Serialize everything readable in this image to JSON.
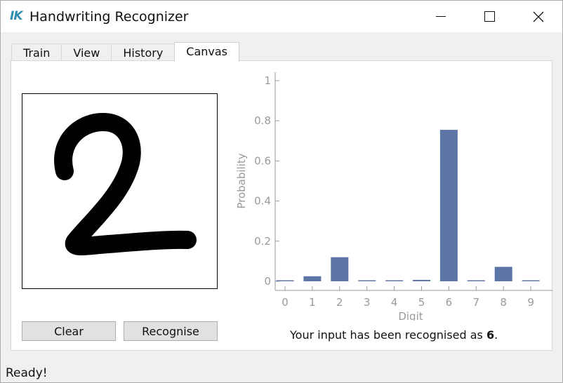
{
  "window": {
    "title": "Handwriting Recognizer",
    "logo_text": "IK"
  },
  "tabs": [
    {
      "label": "Train"
    },
    {
      "label": "View"
    },
    {
      "label": "History"
    },
    {
      "label": "Canvas",
      "active": true
    }
  ],
  "canvas": {
    "drawn_digit": "2"
  },
  "buttons": {
    "clear_label": "Clear",
    "recognise_label": "Recognise"
  },
  "result": {
    "prefix": "Your input has been recognised as ",
    "digit": "6",
    "suffix": "."
  },
  "status": {
    "text": "Ready!"
  },
  "colors": {
    "bar": "#5c75a6",
    "axis": "#9a9a9a",
    "accent_logo": "#2f8fb0"
  },
  "chart_data": {
    "type": "bar",
    "categories": [
      "0",
      "1",
      "2",
      "3",
      "4",
      "5",
      "6",
      "7",
      "8",
      "9"
    ],
    "values": [
      0.003,
      0.025,
      0.12,
      0.002,
      0.004,
      0.007,
      0.755,
      0.002,
      0.072,
      0.002
    ],
    "xlabel": "Digit",
    "ylabel": "Probability",
    "ylim": [
      0,
      1
    ],
    "yticks": [
      "0",
      "0.2",
      "0.4",
      "0.6",
      "0.8",
      "1"
    ]
  }
}
